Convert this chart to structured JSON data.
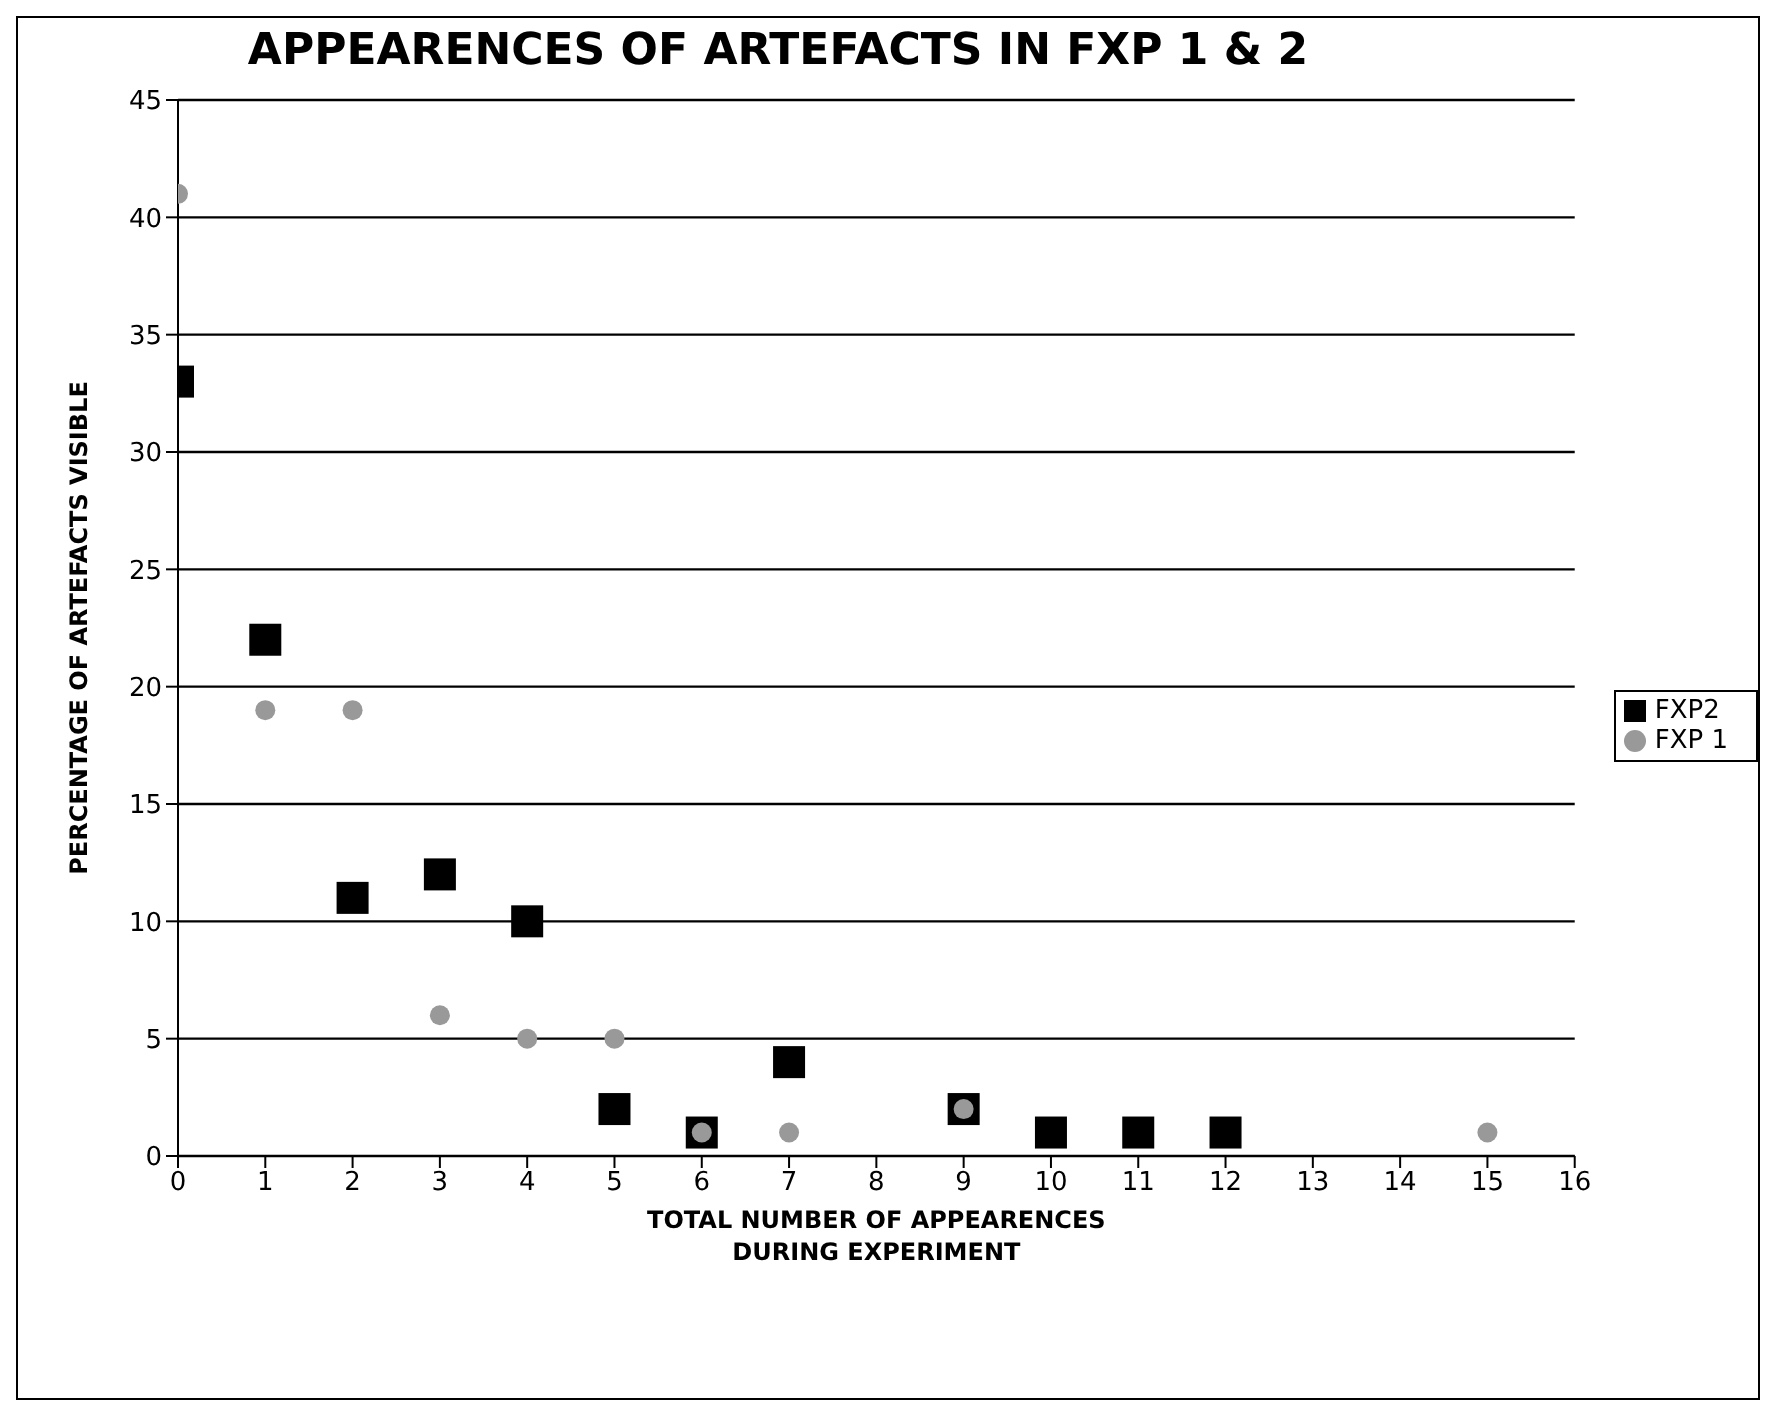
{
  "chart_data": {
    "type": "scatter",
    "title": "APPEARENCES OF ARTEFACTS IN FXP 1 & 2",
    "xlabel": "TOTAL NUMBER OF APPEARENCES\nDURING EXPERIMENT",
    "ylabel": "PERCENTAGE OF ARTEFACTS VISIBLE",
    "xlim": [
      0,
      16
    ],
    "xticks": [
      0,
      1,
      2,
      3,
      4,
      5,
      6,
      7,
      8,
      9,
      10,
      11,
      12,
      13,
      14,
      15,
      16
    ],
    "ylim": [
      0,
      45
    ],
    "yticks": [
      0,
      5,
      10,
      15,
      20,
      25,
      30,
      35,
      40,
      45
    ],
    "grid": "y",
    "legend": "right",
    "series": [
      {
        "name": "FXP2",
        "color": "#000000",
        "marker": "square",
        "x": [
          0,
          1,
          2,
          3,
          4,
          5,
          6,
          7,
          9,
          10,
          11,
          12
        ],
        "values": [
          33,
          22,
          11,
          12,
          10,
          2,
          1,
          4,
          2,
          1,
          1,
          1
        ]
      },
      {
        "name": "FXP 1",
        "color": "#999999",
        "marker": "circle",
        "x": [
          0,
          1,
          2,
          3,
          4,
          5,
          6,
          7,
          9,
          15
        ],
        "values": [
          41,
          19,
          19,
          6,
          5,
          5,
          1,
          1,
          2,
          1
        ]
      }
    ]
  }
}
